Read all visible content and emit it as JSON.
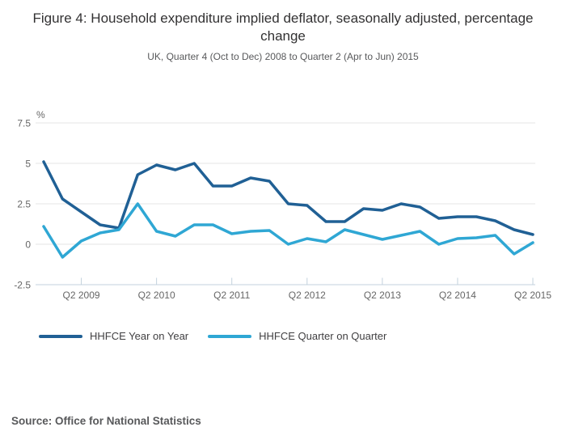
{
  "header": {
    "title": "Figure 4: Household expenditure implied deflator, seasonally adjusted, percentage change",
    "subtitle": "UK, Quarter 4 (Oct to Dec) 2008 to Quarter 2 (Apr to Jun) 2015"
  },
  "chart_data": {
    "type": "line",
    "title": "Figure 4: Household expenditure implied deflator, seasonally adjusted, percentage change",
    "subtitle": "UK, Quarter 4 (Oct to Dec) 2008 to Quarter 2 (Apr to Jun) 2015",
    "unit_label": "%",
    "categories": [
      "Q4 2008",
      "Q1 2009",
      "Q2 2009",
      "Q3 2009",
      "Q4 2009",
      "Q1 2010",
      "Q2 2010",
      "Q3 2010",
      "Q4 2010",
      "Q1 2011",
      "Q2 2011",
      "Q3 2011",
      "Q4 2011",
      "Q1 2012",
      "Q2 2012",
      "Q3 2012",
      "Q4 2012",
      "Q1 2013",
      "Q2 2013",
      "Q3 2013",
      "Q4 2013",
      "Q1 2014",
      "Q2 2014",
      "Q3 2014",
      "Q4 2014",
      "Q1 2015",
      "Q2 2015"
    ],
    "series": [
      {
        "name": "HHFCE Year on Year",
        "color": "#206095",
        "values": [
          5.1,
          2.8,
          2.0,
          1.2,
          1.0,
          4.3,
          4.9,
          4.6,
          5.0,
          3.6,
          3.6,
          4.1,
          3.9,
          2.5,
          2.4,
          1.4,
          1.4,
          2.2,
          2.1,
          2.5,
          2.3,
          1.6,
          1.7,
          1.7,
          1.45,
          0.9,
          0.6
        ]
      },
      {
        "name": "HHFCE Quarter on Quarter",
        "color": "#2fa7d4",
        "values": [
          1.1,
          -0.8,
          0.2,
          0.7,
          0.9,
          2.5,
          0.8,
          0.5,
          1.2,
          1.2,
          0.65,
          0.8,
          0.85,
          0.0,
          0.35,
          0.15,
          0.9,
          0.6,
          0.3,
          0.55,
          0.8,
          0.0,
          0.35,
          0.4,
          0.55,
          -0.6,
          0.1
        ]
      }
    ],
    "ylim": [
      -2.5,
      7.5
    ],
    "yticks": [
      7.5,
      5,
      2.5,
      0,
      -2.5
    ],
    "ytick_labels": [
      "7.5",
      "5",
      "2.5",
      "0",
      "-2.5"
    ],
    "xtick_labels": [
      "Q2 2009",
      "Q2 2010",
      "Q2 2011",
      "Q2 2012",
      "Q2 2013",
      "Q2 2014",
      "Q2 2015"
    ],
    "xtick_indices": [
      2,
      6,
      10,
      14,
      18,
      22,
      26
    ],
    "grid": true,
    "legend_position": "bottom-left",
    "colors": {
      "grid": "#e6e6e6",
      "axis": "#c3d2dd",
      "tick_text": "#666666"
    }
  },
  "source": {
    "text": "Source: Office for National Statistics"
  }
}
